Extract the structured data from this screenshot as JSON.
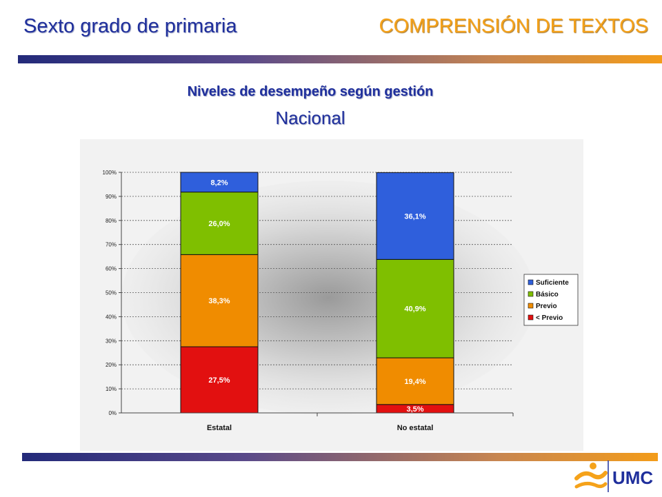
{
  "header": {
    "left_title": "Sexto grado de primaria",
    "right_title": "COMPRENSIÓN DE TEXTOS"
  },
  "subtitle": "Niveles de desempeño según gestión",
  "scope": "Nacional",
  "logo_text": "UMC",
  "colors": {
    "title_blue": "#1f2f9c",
    "title_orange": "#f5a21a",
    "suficiente": "#2f5fdc",
    "basico": "#7fbf00",
    "previo": "#f08c00",
    "menos_previo": "#e21010"
  },
  "chart_data": {
    "type": "bar",
    "stacked": "percent",
    "categories": [
      "Estatal",
      "No estatal"
    ],
    "series": [
      {
        "name": "< Previo",
        "values": [
          27.5,
          3.5
        ],
        "labels": [
          "27,5%",
          "3,5%"
        ],
        "color": "#e21010"
      },
      {
        "name": "Previo",
        "values": [
          38.3,
          19.4
        ],
        "labels": [
          "38,3%",
          "19,4%"
        ],
        "color": "#f08c00"
      },
      {
        "name": "Básico",
        "values": [
          26.0,
          40.9
        ],
        "labels": [
          "26,0%",
          "40,9%"
        ],
        "color": "#7fbf00"
      },
      {
        "name": "Suficiente",
        "values": [
          8.2,
          36.1
        ],
        "labels": [
          "8,2%",
          "36,1%"
        ],
        "color": "#2f5fdc"
      }
    ],
    "legend_order": [
      "Suficiente",
      "Básico",
      "Previo",
      "< Previo"
    ],
    "y_ticks": [
      "0%",
      "10%",
      "20%",
      "30%",
      "40%",
      "50%",
      "60%",
      "70%",
      "80%",
      "90%",
      "100%"
    ],
    "ylim": [
      0,
      100
    ],
    "grid": true,
    "legend_position": "right"
  }
}
